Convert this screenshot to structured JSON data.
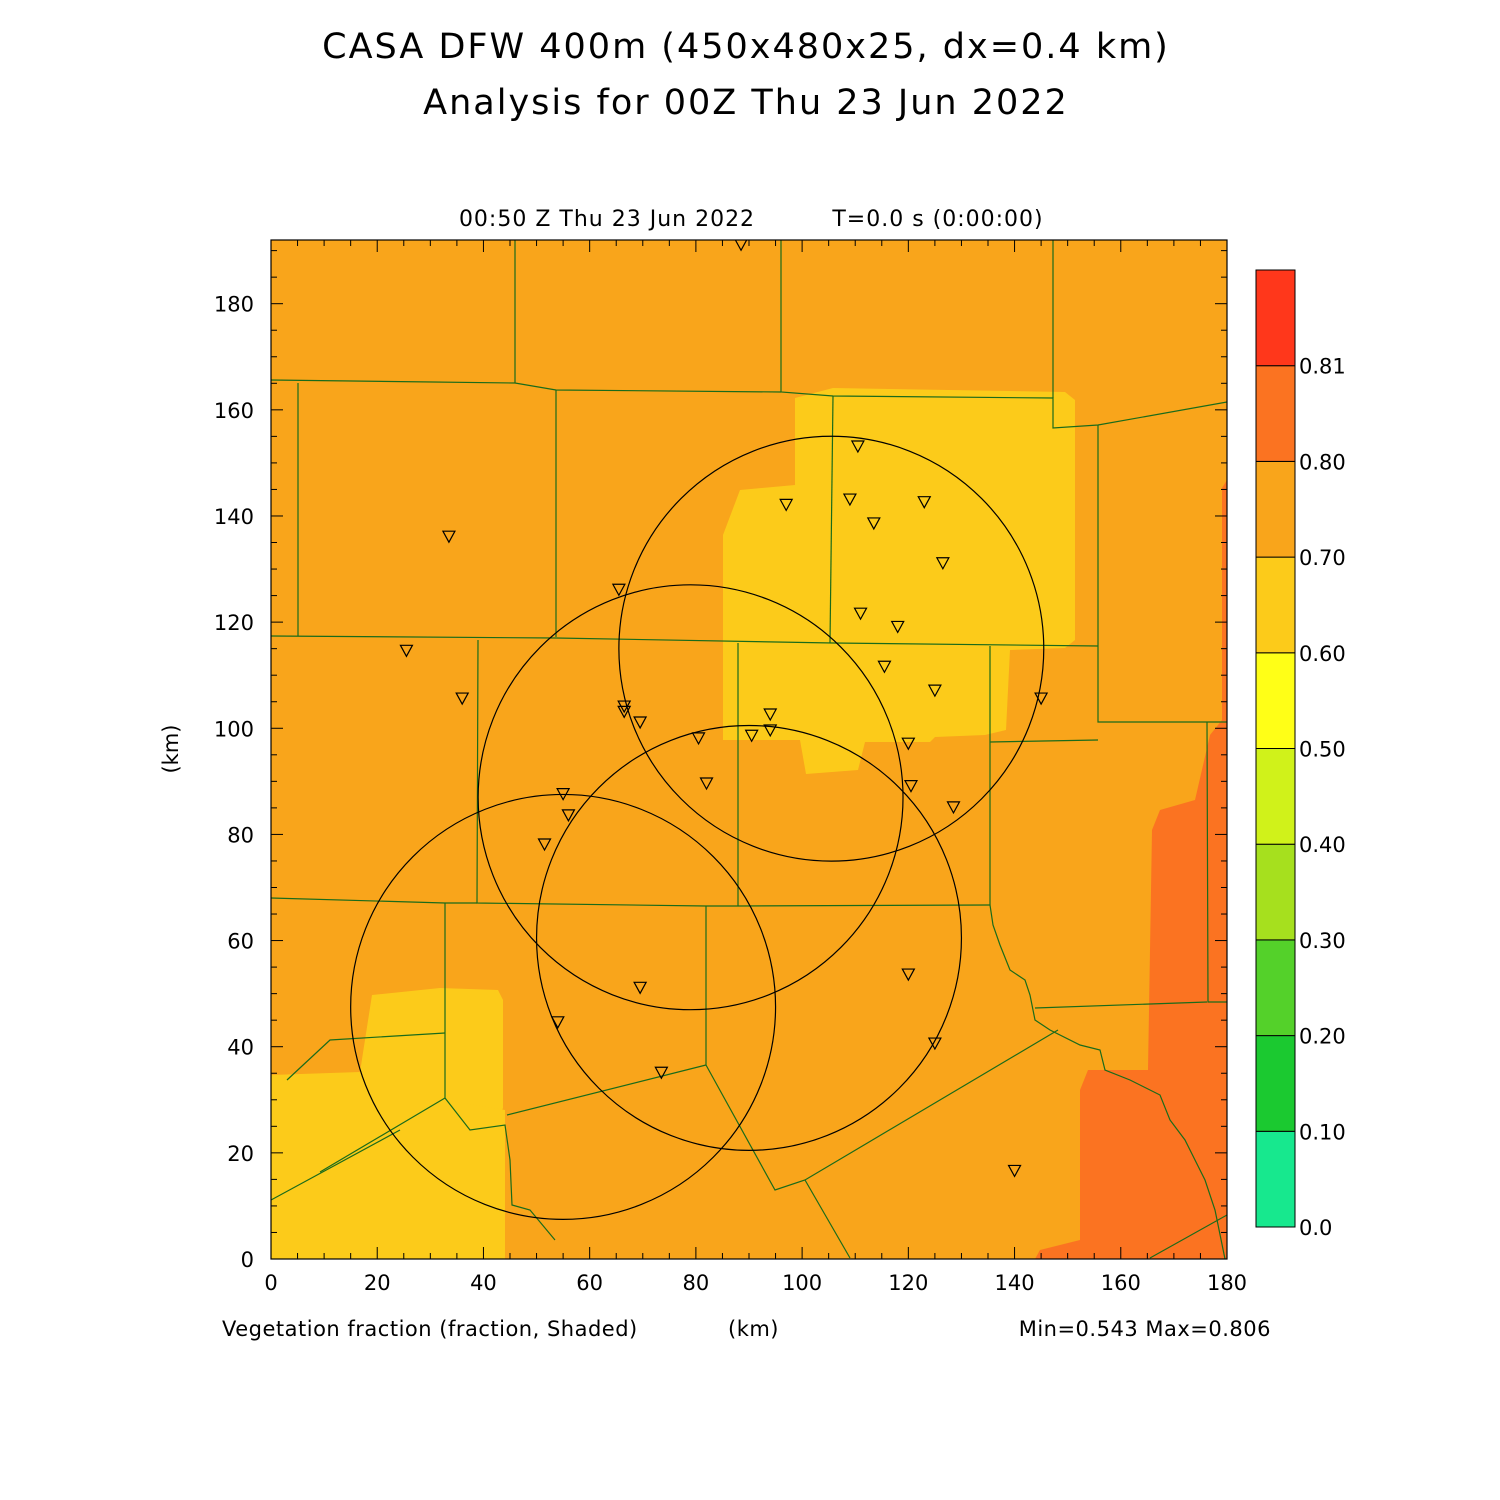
{
  "header": {
    "title_line1": "CASA DFW 400m (450x480x25, dx=0.4 km)",
    "title_line2": "Analysis for 00Z Thu 23 Jun 2022",
    "valid_time": "00:50 Z Thu 23 Jun 2022",
    "run_time": "T=0.0 s (0:00:00)"
  },
  "footer": {
    "field_label": "Vegetation fraction (fraction, Shaded)",
    "x_unit": "(km)",
    "min_max": "Min=0.543 Max=0.806"
  },
  "axes": {
    "y_unit": "(km)",
    "x_ticks": [
      "0",
      "20",
      "40",
      "60",
      "80",
      "100",
      "120",
      "140",
      "160",
      "180"
    ],
    "y_ticks": [
      "0",
      "20",
      "40",
      "60",
      "80",
      "100",
      "120",
      "140",
      "160",
      "180"
    ]
  },
  "colorbar": {
    "labels": [
      "0.0",
      "0.10",
      "0.20",
      "0.30",
      "0.40",
      "0.50",
      "0.60",
      "0.70",
      "0.80",
      "0.81"
    ],
    "colors": [
      "#17e88e",
      "#1bc930",
      "#54d12a",
      "#a6e01e",
      "#d0f21a",
      "#ffff17",
      "#fccb1a",
      "#f9a51b",
      "#fb7321",
      "#ff371b"
    ]
  },
  "map": {
    "background_color": "#f9a51b",
    "light_region_color": "#fccb1a",
    "dark_region_color": "#fb7321",
    "boundary_color": "#1a6b1a",
    "xlim": [
      0,
      180
    ],
    "ylim": [
      0,
      192
    ],
    "radar_rings": [
      {
        "cx": 105.5,
        "cy": 115,
        "r": 40
      },
      {
        "cx": 79,
        "cy": 87,
        "r": 40
      },
      {
        "cx": 90,
        "cy": 60.5,
        "r": 40
      },
      {
        "cx": 55,
        "cy": 47.5,
        "r": 40
      }
    ],
    "stations": [
      [
        88.5,
        191
      ],
      [
        110.5,
        153
      ],
      [
        97,
        142
      ],
      [
        109,
        143
      ],
      [
        123,
        142.5
      ],
      [
        113.5,
        138.5
      ],
      [
        126.5,
        131
      ],
      [
        33.5,
        136
      ],
      [
        65.5,
        126
      ],
      [
        111,
        121.5
      ],
      [
        118,
        119
      ],
      [
        25.5,
        114.5
      ],
      [
        36,
        105.5
      ],
      [
        115.5,
        111.5
      ],
      [
        125,
        107
      ],
      [
        66.5,
        104
      ],
      [
        66.5,
        103
      ],
      [
        69.5,
        101
      ],
      [
        145,
        105.5
      ],
      [
        94,
        102.5
      ],
      [
        94,
        99.5
      ],
      [
        90.5,
        98.5
      ],
      [
        80.5,
        98
      ],
      [
        120,
        97
      ],
      [
        82,
        89.5
      ],
      [
        120.5,
        89
      ],
      [
        55,
        87.5
      ],
      [
        128.5,
        85
      ],
      [
        56,
        83.5
      ],
      [
        51.5,
        78
      ],
      [
        69.5,
        51
      ],
      [
        120,
        53.5
      ],
      [
        54,
        44.5
      ],
      [
        125,
        40.5
      ],
      [
        73.5,
        35
      ],
      [
        140,
        16.5
      ]
    ]
  }
}
